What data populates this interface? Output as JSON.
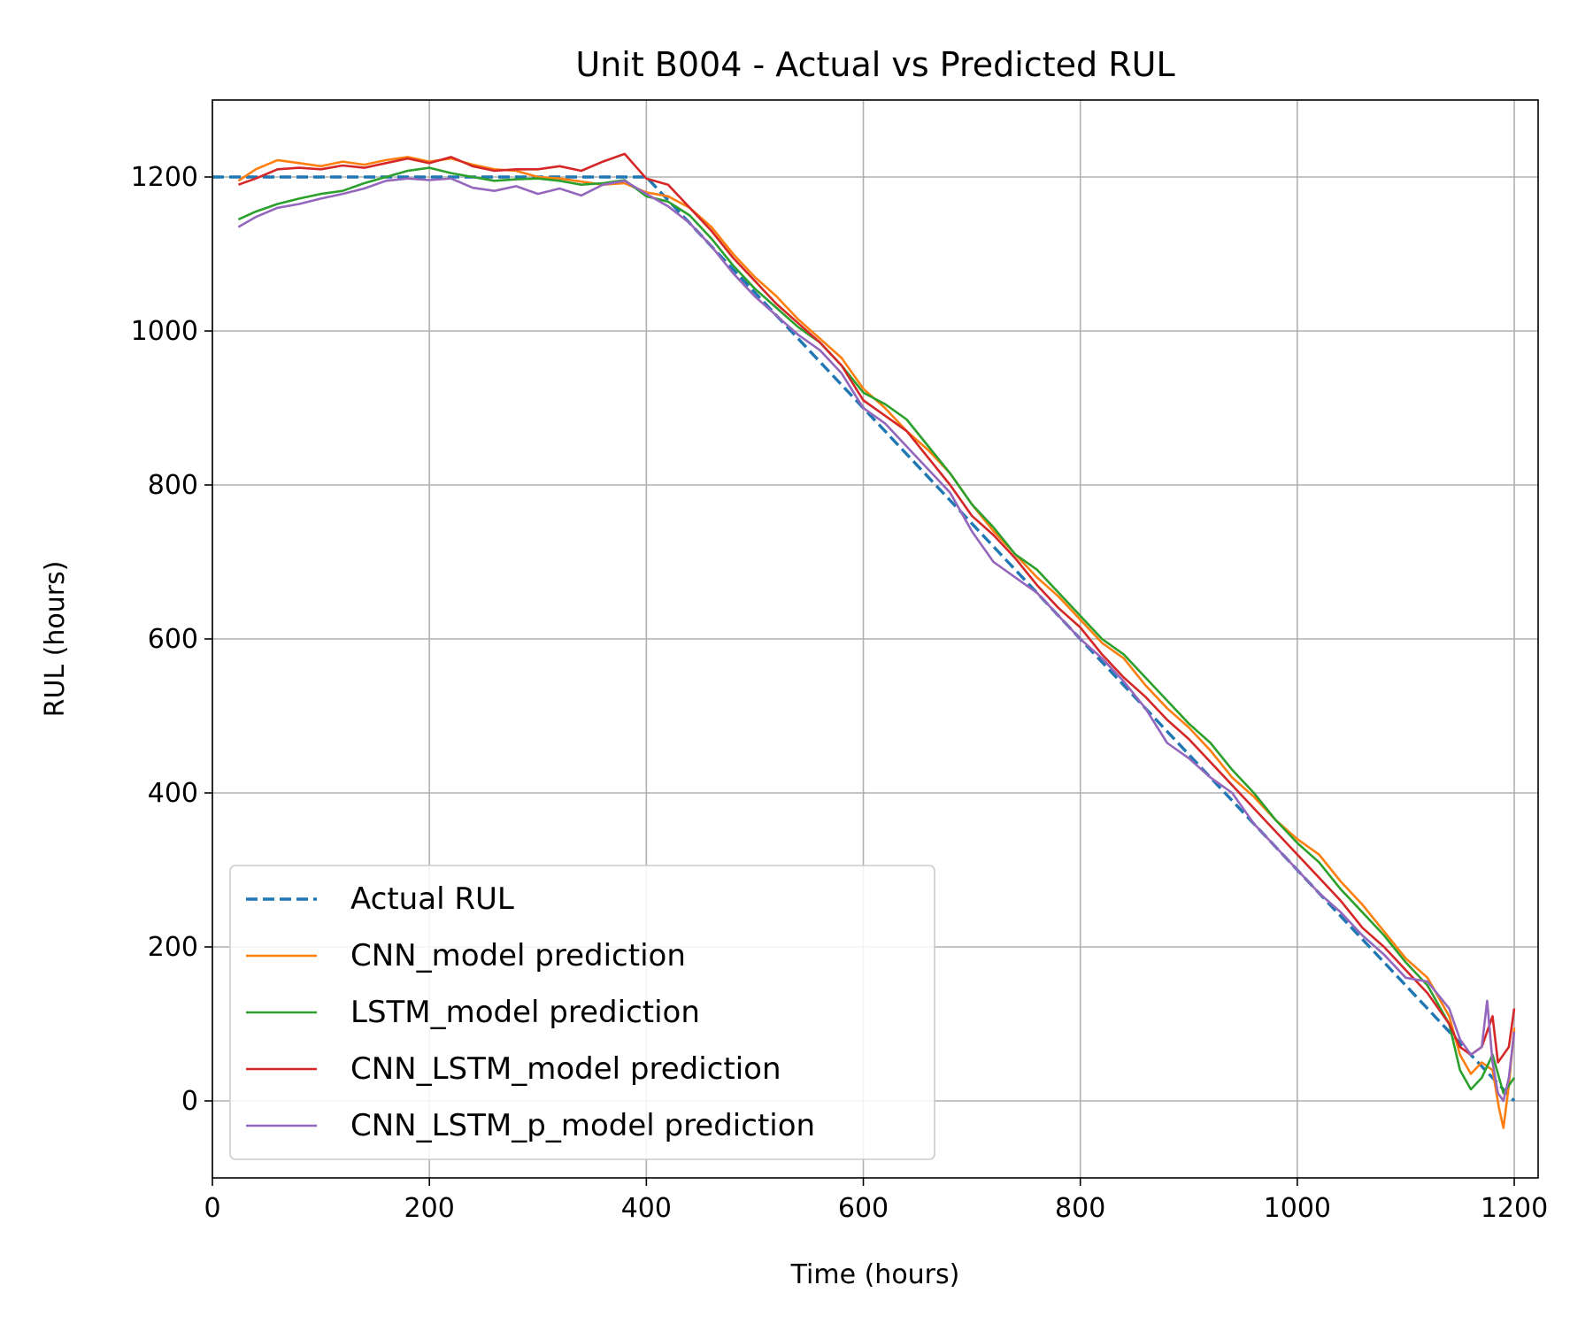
{
  "chart_data": {
    "type": "line",
    "title": "Unit B004 - Actual vs Predicted RUL",
    "xlabel": "Time (hours)",
    "ylabel": "RUL (hours)",
    "xlim": [
      0,
      1222
    ],
    "ylim": [
      -100,
      1300
    ],
    "xticks": [
      0,
      200,
      400,
      600,
      800,
      1000,
      1200
    ],
    "yticks": [
      0,
      200,
      400,
      600,
      800,
      1000,
      1200
    ],
    "grid": true,
    "legend_position": "lower-left",
    "series": [
      {
        "name": "Actual RUL",
        "color": "#1f77b4",
        "style": "dashed",
        "x": [
          0,
          400,
          1200
        ],
        "y": [
          1200,
          1200,
          0
        ]
      },
      {
        "name": "CNN_model prediction",
        "color": "#ff7f0e",
        "style": "solid",
        "x": [
          24,
          40,
          60,
          80,
          100,
          120,
          140,
          160,
          180,
          200,
          220,
          240,
          260,
          280,
          300,
          320,
          340,
          360,
          380,
          400,
          420,
          440,
          460,
          480,
          500,
          520,
          540,
          560,
          580,
          600,
          620,
          640,
          660,
          680,
          700,
          720,
          740,
          760,
          780,
          800,
          820,
          840,
          860,
          880,
          900,
          920,
          940,
          960,
          980,
          1000,
          1020,
          1040,
          1060,
          1080,
          1100,
          1120,
          1140,
          1150,
          1160,
          1170,
          1180,
          1186,
          1190,
          1195,
          1200
        ],
        "y": [
          1195,
          1210,
          1222,
          1218,
          1214,
          1220,
          1216,
          1222,
          1226,
          1220,
          1224,
          1216,
          1210,
          1208,
          1200,
          1198,
          1194,
          1190,
          1192,
          1180,
          1175,
          1160,
          1135,
          1100,
          1070,
          1045,
          1015,
          990,
          965,
          925,
          900,
          870,
          845,
          815,
          775,
          740,
          710,
          680,
          655,
          625,
          595,
          575,
          540,
          510,
          485,
          455,
          420,
          395,
          365,
          340,
          320,
          285,
          255,
          220,
          185,
          160,
          110,
          60,
          35,
          50,
          40,
          -10,
          -35,
          20,
          95
        ]
      },
      {
        "name": "LSTM_model prediction",
        "color": "#2ca02c",
        "style": "solid",
        "x": [
          24,
          40,
          60,
          80,
          100,
          120,
          140,
          160,
          180,
          200,
          220,
          240,
          260,
          280,
          300,
          320,
          340,
          360,
          380,
          400,
          420,
          440,
          460,
          480,
          500,
          520,
          540,
          560,
          580,
          600,
          620,
          640,
          660,
          680,
          700,
          720,
          740,
          760,
          780,
          800,
          820,
          840,
          860,
          880,
          900,
          920,
          940,
          960,
          980,
          1000,
          1020,
          1040,
          1060,
          1080,
          1100,
          1120,
          1140,
          1150,
          1160,
          1170,
          1180,
          1190,
          1200
        ],
        "y": [
          1145,
          1155,
          1165,
          1172,
          1178,
          1182,
          1192,
          1200,
          1208,
          1212,
          1205,
          1200,
          1195,
          1197,
          1198,
          1195,
          1190,
          1192,
          1196,
          1175,
          1168,
          1150,
          1120,
          1085,
          1055,
          1030,
          1005,
          985,
          955,
          920,
          905,
          885,
          850,
          815,
          775,
          745,
          710,
          690,
          660,
          630,
          600,
          580,
          550,
          520,
          490,
          465,
          430,
          400,
          365,
          335,
          310,
          275,
          245,
          215,
          180,
          150,
          100,
          40,
          15,
          30,
          60,
          10,
          30
        ]
      },
      {
        "name": "CNN_LSTM_model prediction",
        "color": "#d62728",
        "style": "solid",
        "x": [
          24,
          40,
          60,
          80,
          100,
          120,
          140,
          160,
          180,
          200,
          220,
          240,
          260,
          280,
          300,
          320,
          340,
          360,
          380,
          400,
          420,
          440,
          460,
          480,
          500,
          520,
          540,
          560,
          580,
          600,
          620,
          640,
          660,
          680,
          700,
          720,
          740,
          760,
          780,
          800,
          820,
          840,
          860,
          880,
          900,
          920,
          940,
          960,
          980,
          1000,
          1020,
          1040,
          1060,
          1080,
          1100,
          1120,
          1140,
          1150,
          1160,
          1170,
          1180,
          1185,
          1190,
          1195,
          1200
        ],
        "y": [
          1190,
          1198,
          1210,
          1212,
          1210,
          1215,
          1212,
          1218,
          1224,
          1218,
          1226,
          1214,
          1208,
          1210,
          1210,
          1214,
          1208,
          1220,
          1230,
          1198,
          1190,
          1160,
          1130,
          1095,
          1065,
          1035,
          1010,
          985,
          955,
          910,
          890,
          870,
          835,
          800,
          760,
          735,
          705,
          670,
          640,
          615,
          580,
          550,
          525,
          495,
          470,
          440,
          410,
          380,
          350,
          320,
          290,
          260,
          225,
          200,
          170,
          140,
          100,
          70,
          60,
          70,
          110,
          50,
          60,
          70,
          120
        ]
      },
      {
        "name": "CNN_LSTM_p_model prediction",
        "color": "#9467bd",
        "style": "solid",
        "x": [
          24,
          40,
          60,
          80,
          100,
          120,
          140,
          160,
          180,
          200,
          220,
          240,
          260,
          280,
          300,
          320,
          340,
          360,
          380,
          400,
          420,
          440,
          460,
          480,
          500,
          520,
          540,
          560,
          580,
          600,
          620,
          640,
          660,
          680,
          700,
          720,
          740,
          760,
          780,
          800,
          820,
          840,
          860,
          880,
          900,
          920,
          940,
          960,
          980,
          1000,
          1020,
          1040,
          1060,
          1080,
          1100,
          1120,
          1140,
          1150,
          1160,
          1170,
          1175,
          1180,
          1185,
          1190,
          1195,
          1200
        ],
        "y": [
          1135,
          1148,
          1160,
          1165,
          1172,
          1178,
          1185,
          1195,
          1198,
          1196,
          1198,
          1186,
          1182,
          1188,
          1178,
          1185,
          1176,
          1190,
          1195,
          1178,
          1162,
          1140,
          1110,
          1075,
          1045,
          1020,
          995,
          975,
          945,
          900,
          880,
          850,
          820,
          790,
          740,
          700,
          680,
          660,
          630,
          600,
          575,
          545,
          510,
          465,
          445,
          420,
          400,
          360,
          330,
          300,
          270,
          245,
          215,
          190,
          160,
          155,
          120,
          80,
          60,
          70,
          130,
          50,
          10,
          0,
          30,
          90
        ]
      }
    ]
  }
}
